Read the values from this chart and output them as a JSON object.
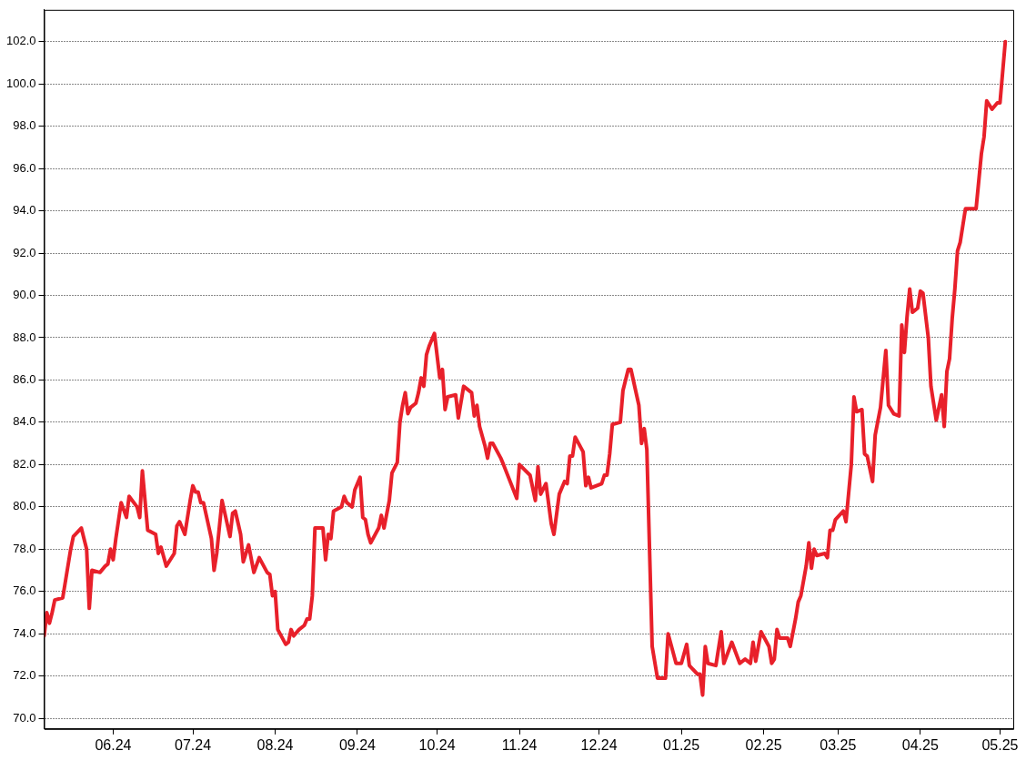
{
  "chart_data": {
    "type": "line",
    "grid": "y",
    "marker": "none",
    "line_style": "solid",
    "legend": false,
    "xlim": [
      "2024-05-06",
      "2025-05-06"
    ],
    "xticks": [
      {
        "value": "2024-06-01",
        "label": "06.24"
      },
      {
        "value": "2024-07-01",
        "label": "07.24"
      },
      {
        "value": "2024-08-01",
        "label": "08.24"
      },
      {
        "value": "2024-09-01",
        "label": "09.24"
      },
      {
        "value": "2024-10-01",
        "label": "10.24"
      },
      {
        "value": "2024-11-01",
        "label": "11.24"
      },
      {
        "value": "2024-12-01",
        "label": "12.24"
      },
      {
        "value": "2025-01-01",
        "label": "01.25"
      },
      {
        "value": "2025-02-01",
        "label": "02.25"
      },
      {
        "value": "2025-03-01",
        "label": "03.25"
      },
      {
        "value": "2025-04-01",
        "label": "04.25"
      },
      {
        "value": "2025-05-01",
        "label": "05.25"
      }
    ],
    "ylim": [
      69.5,
      103.5
    ],
    "yticks": [
      {
        "value": 70,
        "label": "70.0"
      },
      {
        "value": 72,
        "label": "72.0"
      },
      {
        "value": 74,
        "label": "74.0"
      },
      {
        "value": 76,
        "label": "76.0"
      },
      {
        "value": 78,
        "label": "78.0"
      },
      {
        "value": 80,
        "label": "80.0"
      },
      {
        "value": 82,
        "label": "82.0"
      },
      {
        "value": 84,
        "label": "84.0"
      },
      {
        "value": 86,
        "label": "86.0"
      },
      {
        "value": 88,
        "label": "88.0"
      },
      {
        "value": 90,
        "label": "90.0"
      },
      {
        "value": 92,
        "label": "92.0"
      },
      {
        "value": 94,
        "label": "94.0"
      },
      {
        "value": 96,
        "label": "96.0"
      },
      {
        "value": 98,
        "label": "98.0"
      },
      {
        "value": 100,
        "label": "100.0"
      },
      {
        "value": 102,
        "label": "102.0"
      }
    ],
    "series": [
      {
        "color": "#e8202a",
        "x": [
          "2024-05-06",
          "2024-05-07",
          "2024-05-08",
          "2024-05-09",
          "2024-05-10",
          "2024-05-13",
          "2024-05-16",
          "2024-05-17",
          "2024-05-20",
          "2024-05-22",
          "2024-05-23",
          "2024-05-24",
          "2024-05-27",
          "2024-05-29",
          "2024-05-30",
          "2024-05-31",
          "2024-06-01",
          "2024-06-02",
          "2024-06-04",
          "2024-06-06",
          "2024-06-07",
          "2024-06-10",
          "2024-06-11",
          "2024-06-12",
          "2024-06-14",
          "2024-06-17",
          "2024-06-18",
          "2024-06-19",
          "2024-06-21",
          "2024-06-24",
          "2024-06-25",
          "2024-06-26",
          "2024-06-28",
          "2024-06-30",
          "2024-07-01",
          "2024-07-02",
          "2024-07-03",
          "2024-07-04",
          "2024-07-05",
          "2024-07-08",
          "2024-07-09",
          "2024-07-10",
          "2024-07-12",
          "2024-07-15",
          "2024-07-16",
          "2024-07-17",
          "2024-07-19",
          "2024-07-20",
          "2024-07-22",
          "2024-07-24",
          "2024-07-26",
          "2024-07-29",
          "2024-07-30",
          "2024-07-31",
          "2024-08-01",
          "2024-08-02",
          "2024-08-05",
          "2024-08-06",
          "2024-08-07",
          "2024-08-08",
          "2024-08-10",
          "2024-08-12",
          "2024-08-13",
          "2024-08-14",
          "2024-08-15",
          "2024-08-16",
          "2024-08-19",
          "2024-08-20",
          "2024-08-21",
          "2024-08-22",
          "2024-08-23",
          "2024-08-26",
          "2024-08-27",
          "2024-08-28",
          "2024-08-30",
          "2024-08-31",
          "2024-09-02",
          "2024-09-03",
          "2024-09-04",
          "2024-09-05",
          "2024-09-06",
          "2024-09-09",
          "2024-09-10",
          "2024-09-11",
          "2024-09-13",
          "2024-09-14",
          "2024-09-16",
          "2024-09-17",
          "2024-09-18",
          "2024-09-19",
          "2024-09-20",
          "2024-09-21",
          "2024-09-23",
          "2024-09-24",
          "2024-09-25",
          "2024-09-26",
          "2024-09-27",
          "2024-09-28",
          "2024-09-30",
          "2024-10-02",
          "2024-10-03",
          "2024-10-04",
          "2024-10-05",
          "2024-10-08",
          "2024-10-09",
          "2024-10-11",
          "2024-10-14",
          "2024-10-15",
          "2024-10-16",
          "2024-10-17",
          "2024-10-19",
          "2024-10-20",
          "2024-10-21",
          "2024-10-22",
          "2024-10-25",
          "2024-10-26",
          "2024-10-31",
          "2024-11-01",
          "2024-11-05",
          "2024-11-07",
          "2024-11-08",
          "2024-11-09",
          "2024-11-11",
          "2024-11-13",
          "2024-11-14",
          "2024-11-16",
          "2024-11-18",
          "2024-11-19",
          "2024-11-20",
          "2024-11-21",
          "2024-11-22",
          "2024-11-25",
          "2024-11-26",
          "2024-11-27",
          "2024-11-28",
          "2024-12-02",
          "2024-12-03",
          "2024-12-04",
          "2024-12-05",
          "2024-12-06",
          "2024-12-09",
          "2024-12-10",
          "2024-12-12",
          "2024-12-13",
          "2024-12-16",
          "2024-12-17",
          "2024-12-18",
          "2024-12-19",
          "2024-12-21",
          "2024-12-23",
          "2024-12-26",
          "2024-12-27",
          "2024-12-30",
          "2025-01-01",
          "2025-01-03",
          "2025-01-04",
          "2025-01-07",
          "2025-01-08",
          "2025-01-09",
          "2025-01-10",
          "2025-01-11",
          "2025-01-14",
          "2025-01-16",
          "2025-01-17",
          "2025-01-20",
          "2025-01-23",
          "2025-01-25",
          "2025-01-27",
          "2025-01-28",
          "2025-01-29",
          "2025-01-31",
          "2025-02-03",
          "2025-02-04",
          "2025-02-05",
          "2025-02-06",
          "2025-02-07",
          "2025-02-10",
          "2025-02-11",
          "2025-02-13",
          "2025-02-14",
          "2025-02-15",
          "2025-02-17",
          "2025-02-18",
          "2025-02-19",
          "2025-02-20",
          "2025-02-21",
          "2025-02-24",
          "2025-02-25",
          "2025-02-26",
          "2025-02-27",
          "2025-02-28",
          "2025-03-03",
          "2025-03-04",
          "2025-03-06",
          "2025-03-07",
          "2025-03-08",
          "2025-03-10",
          "2025-03-11",
          "2025-03-12",
          "2025-03-14",
          "2025-03-15",
          "2025-03-17",
          "2025-03-19",
          "2025-03-20",
          "2025-03-22",
          "2025-03-24",
          "2025-03-25",
          "2025-03-26",
          "2025-03-27",
          "2025-03-28",
          "2025-03-29",
          "2025-03-31",
          "2025-04-01",
          "2025-04-02",
          "2025-04-04",
          "2025-04-05",
          "2025-04-07",
          "2025-04-09",
          "2025-04-10",
          "2025-04-11",
          "2025-04-12",
          "2025-04-13",
          "2025-04-14",
          "2025-04-15",
          "2025-04-16",
          "2025-04-18",
          "2025-04-22",
          "2025-04-24",
          "2025-04-25",
          "2025-04-26",
          "2025-04-28",
          "2025-04-30",
          "2025-05-01",
          "2025-05-03"
        ],
        "values": [
          73.9,
          75.0,
          74.5,
          75.0,
          75.6,
          75.7,
          78.0,
          78.6,
          79.0,
          78.0,
          75.2,
          77.0,
          76.9,
          77.2,
          77.3,
          78.0,
          77.5,
          78.5,
          80.2,
          79.5,
          80.5,
          80.0,
          79.5,
          81.7,
          78.9,
          78.7,
          77.8,
          78.1,
          77.2,
          77.8,
          79.1,
          79.3,
          78.7,
          80.3,
          81.0,
          80.7,
          80.7,
          80.2,
          80.2,
          78.5,
          77.0,
          77.8,
          80.3,
          78.6,
          79.7,
          79.8,
          78.7,
          77.4,
          78.2,
          76.9,
          77.6,
          76.9,
          76.8,
          75.8,
          76.0,
          74.2,
          73.5,
          73.6,
          74.2,
          73.9,
          74.2,
          74.4,
          74.7,
          74.7,
          75.8,
          79.0,
          79.0,
          77.5,
          78.7,
          78.5,
          79.8,
          80.0,
          80.5,
          80.2,
          80.0,
          80.8,
          81.4,
          79.5,
          79.4,
          78.7,
          78.3,
          79.0,
          79.6,
          79.0,
          80.3,
          81.6,
          82.1,
          84.0,
          84.8,
          85.4,
          84.4,
          84.7,
          84.9,
          85.4,
          86.1,
          85.7,
          87.2,
          87.6,
          88.2,
          86.1,
          86.5,
          84.6,
          85.2,
          85.3,
          84.2,
          85.7,
          85.4,
          84.3,
          84.8,
          83.8,
          82.9,
          82.3,
          83.0,
          83.0,
          82.3,
          82.0,
          80.4,
          82.0,
          81.5,
          80.3,
          81.9,
          80.6,
          81.1,
          79.2,
          78.7,
          80.6,
          81.2,
          81.1,
          82.4,
          82.4,
          83.3,
          82.6,
          81.0,
          81.4,
          80.9,
          81.1,
          81.5,
          81.5,
          82.5,
          83.9,
          84.0,
          85.5,
          86.5,
          86.5,
          84.8,
          83.0,
          83.7,
          82.7,
          73.4,
          71.9,
          71.9,
          74.0,
          72.6,
          72.6,
          73.5,
          72.5,
          72.1,
          72.1,
          71.1,
          73.4,
          72.6,
          72.5,
          74.1,
          72.6,
          73.6,
          72.6,
          72.8,
          72.6,
          73.6,
          72.7,
          74.1,
          73.4,
          72.6,
          72.8,
          74.2,
          73.8,
          73.8,
          73.4,
          74.7,
          75.5,
          75.8,
          77.2,
          78.3,
          77.1,
          78.0,
          77.7,
          77.8,
          77.6,
          78.9,
          78.9,
          79.4,
          79.8,
          79.3,
          82.0,
          85.2,
          84.5,
          84.6,
          82.5,
          82.4,
          81.2,
          83.4,
          84.7,
          87.4,
          84.8,
          84.4,
          84.3,
          88.6,
          87.3,
          89.0,
          90.3,
          89.2,
          89.4,
          90.2,
          90.1,
          88.0,
          85.7,
          84.1,
          85.3,
          83.8,
          86.4,
          87.0,
          88.9,
          90.3,
          92.1,
          92.5,
          94.1,
          94.1,
          96.7,
          97.5,
          99.2,
          98.8,
          99.1,
          99.1,
          102.0
        ]
      }
    ]
  }
}
